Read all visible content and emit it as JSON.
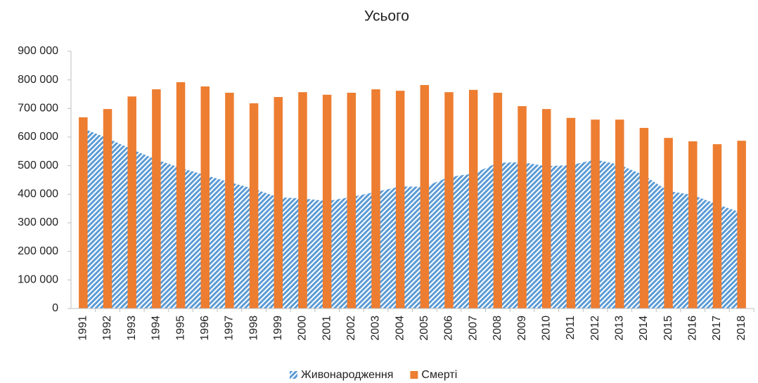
{
  "chart_data": {
    "type": "bar+area",
    "title": "Усього",
    "categories": [
      "1991",
      "1992",
      "1993",
      "1994",
      "1995",
      "1996",
      "1997",
      "1998",
      "1999",
      "2000",
      "2001",
      "2002",
      "2003",
      "2004",
      "2005",
      "2006",
      "2007",
      "2008",
      "2009",
      "2010",
      "2011",
      "2012",
      "2013",
      "2014",
      "2015",
      "2016",
      "2017",
      "2018"
    ],
    "series": [
      {
        "name": "Живонародження",
        "type": "area",
        "pattern": "hatch",
        "color": "#5b9bd5",
        "values": [
          630000,
          596000,
          557000,
          521000,
          492000,
          467000,
          442000,
          419000,
          389000,
          385000,
          376000,
          390000,
          408000,
          427000,
          426000,
          460000,
          472000,
          510000,
          512000,
          498000,
          502000,
          521000,
          503000,
          466000,
          411000,
          397000,
          365000,
          335000
        ]
      },
      {
        "name": "Смерті",
        "type": "bar",
        "color": "#ed7d31",
        "values": [
          669000,
          698000,
          742000,
          767000,
          792000,
          777000,
          755000,
          718000,
          740000,
          757000,
          748000,
          755000,
          767000,
          762000,
          782000,
          757000,
          765000,
          755000,
          708000,
          698000,
          667000,
          661000,
          661000,
          632000,
          597000,
          585000,
          575000,
          587000
        ]
      }
    ],
    "ylim": [
      0,
      900000
    ],
    "yticks": [
      0,
      {
        "value": 100000,
        "label": "100 000"
      },
      {
        "value": 200000,
        "label": "200 000"
      },
      {
        "value": 300000,
        "label": "300 000"
      },
      {
        "value": 400000,
        "label": "400 000"
      },
      {
        "value": 500000,
        "label": "500 000"
      },
      {
        "value": 600000,
        "label": "600 000"
      },
      {
        "value": 700000,
        "label": "700 000"
      },
      {
        "value": 800000,
        "label": "800 000"
      },
      {
        "value": 900000,
        "label": "900 000"
      }
    ],
    "grid": false,
    "legend": "bottom"
  }
}
